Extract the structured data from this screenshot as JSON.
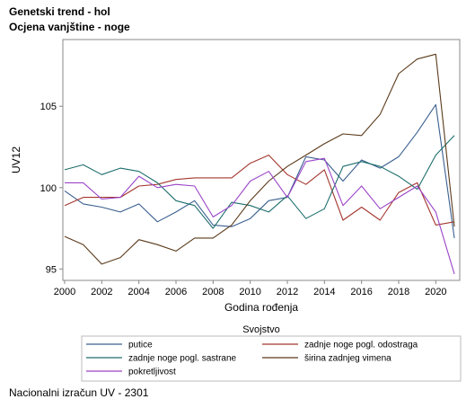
{
  "header": {
    "title": "Genetski trend - hol",
    "subtitle": "Ocjena vanjštine - noge"
  },
  "footer": {
    "text": "Nacionalni izračun UV - 2301"
  },
  "chart_data": {
    "type": "line",
    "xlabel": "Godina rođenja",
    "ylabel": "UV12",
    "xlim": [
      2000,
      2021
    ],
    "ylim": [
      94.3,
      109.1
    ],
    "xticks": [
      2000,
      2002,
      2004,
      2006,
      2008,
      2010,
      2012,
      2014,
      2016,
      2018,
      2020
    ],
    "yticks": [
      95,
      100,
      105
    ],
    "grid": false,
    "legend": {
      "title": "Svojstvo",
      "placement": "bottom"
    },
    "x": [
      2000,
      2001,
      2002,
      2003,
      2004,
      2005,
      2006,
      2007,
      2008,
      2009,
      2010,
      2011,
      2012,
      2013,
      2014,
      2015,
      2016,
      2017,
      2018,
      2019,
      2020,
      2021
    ],
    "series": [
      {
        "name": "putice",
        "color": "#3a5f8f",
        "values": [
          99.8,
          99.0,
          98.8,
          98.5,
          99.0,
          97.9,
          98.5,
          99.2,
          97.7,
          97.6,
          98.1,
          99.2,
          99.4,
          101.9,
          101.7,
          100.4,
          101.7,
          101.2,
          101.9,
          103.4,
          105.1,
          96.9
        ]
      },
      {
        "name": "zadnje noge pogl. odostraga",
        "color": "#a4372f",
        "values": [
          98.9,
          99.4,
          99.4,
          99.4,
          100.1,
          100.2,
          100.5,
          100.6,
          100.6,
          100.6,
          101.5,
          102.0,
          100.8,
          100.2,
          101.1,
          98.0,
          98.8,
          98.0,
          99.7,
          100.3,
          97.7,
          97.9
        ]
      },
      {
        "name": "zadnje noge pogl. sastrane",
        "color": "#1d6e6c",
        "values": [
          101.1,
          101.4,
          100.8,
          101.2,
          101.0,
          100.3,
          99.2,
          98.9,
          97.5,
          99.1,
          98.9,
          98.5,
          99.5,
          98.1,
          98.7,
          101.3,
          101.6,
          101.3,
          100.7,
          99.9,
          102.0,
          103.2
        ]
      },
      {
        "name": "širina zadnjeg vimena",
        "color": "#5a3a1a",
        "values": [
          97.0,
          96.5,
          95.3,
          95.7,
          96.8,
          96.5,
          96.1,
          96.9,
          96.9,
          97.7,
          99.2,
          100.4,
          101.3,
          102.0,
          102.7,
          103.3,
          103.2,
          104.5,
          107.0,
          107.9,
          108.2,
          97.6
        ]
      },
      {
        "name": "pokretljivost",
        "color": "#9b44c8",
        "values": [
          100.3,
          100.3,
          99.3,
          99.4,
          100.7,
          100.0,
          100.2,
          100.1,
          98.2,
          98.9,
          100.4,
          101.0,
          99.4,
          101.6,
          101.8,
          98.9,
          100.1,
          98.7,
          99.4,
          100.1,
          98.5,
          94.7
        ]
      }
    ]
  }
}
